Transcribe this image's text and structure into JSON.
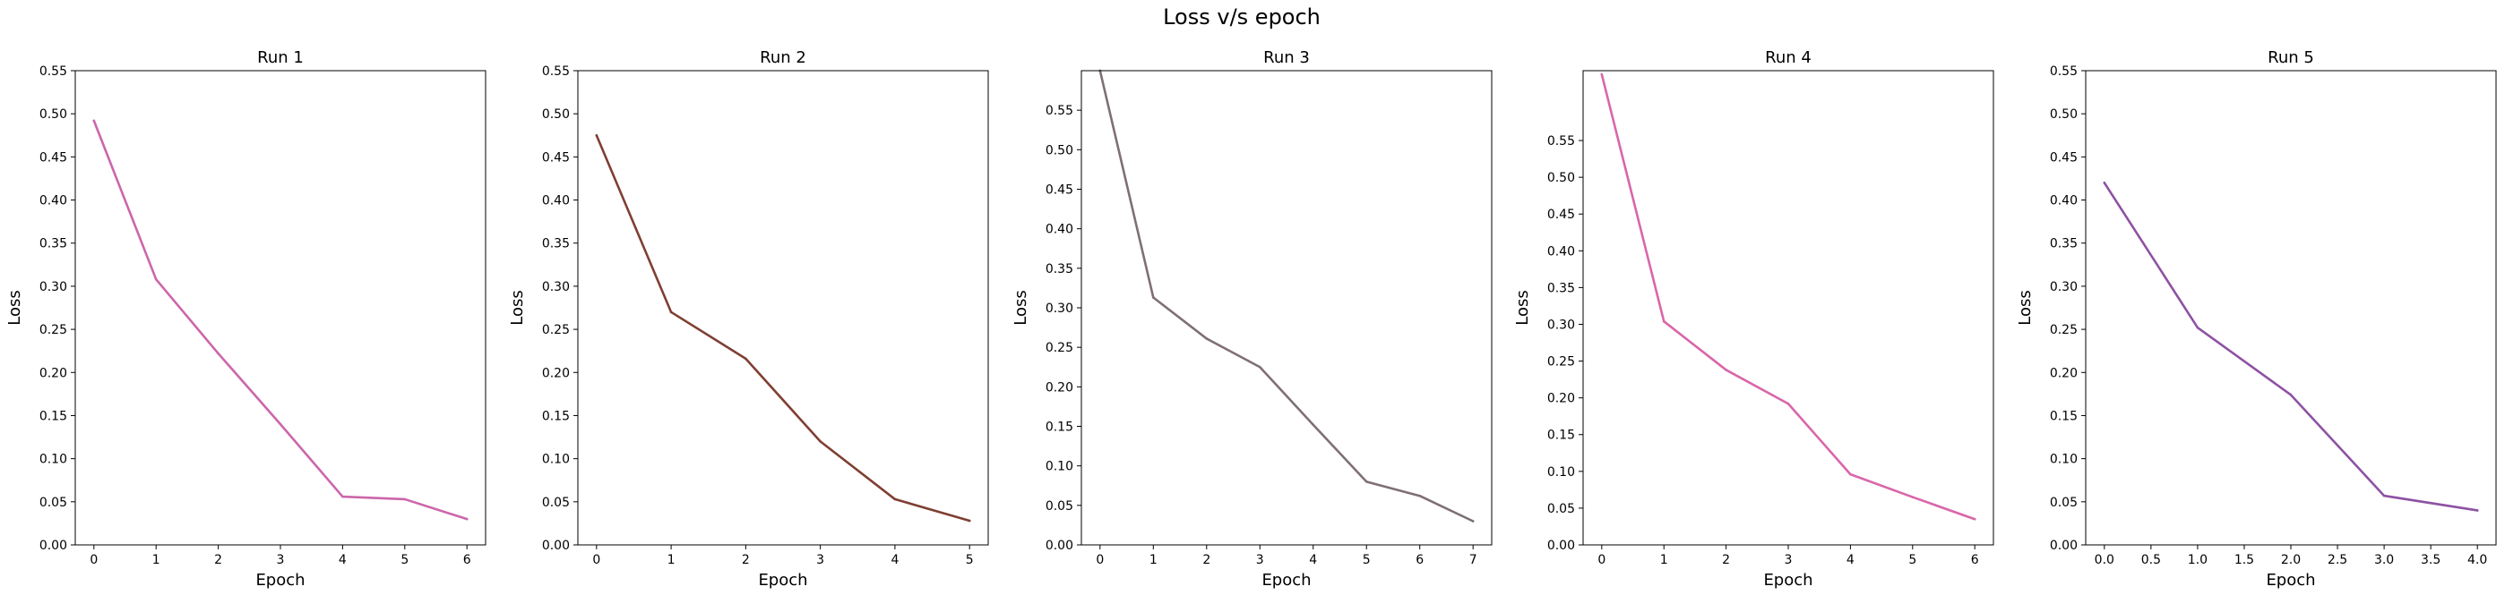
{
  "figure_title": "Loss v/s epoch",
  "chart_data": [
    {
      "type": "line",
      "title": "Run 1",
      "xlabel": "Epoch",
      "ylabel": "Loss",
      "color": "#cc66aa",
      "x": [
        0,
        1,
        2,
        3,
        4,
        5,
        6
      ],
      "y": [
        0.492,
        0.308,
        0.222,
        0.14,
        0.056,
        0.053,
        0.03
      ],
      "xlim": [
        -0.3,
        6.3
      ],
      "ylim": [
        0,
        0.55
      ],
      "xticks": [
        0,
        1,
        2,
        3,
        4,
        5,
        6
      ],
      "xtick_labels": [
        "0",
        "1",
        "2",
        "3",
        "4",
        "5",
        "6"
      ],
      "yticks": [
        0,
        0.05,
        0.1,
        0.15,
        0.2,
        0.25,
        0.3,
        0.35,
        0.4,
        0.45,
        0.5,
        0.55
      ],
      "ytick_labels": [
        "0.00",
        "0.05",
        "0.10",
        "0.15",
        "0.20",
        "0.25",
        "0.30",
        "0.35",
        "0.40",
        "0.45",
        "0.50",
        "0.55"
      ]
    },
    {
      "type": "line",
      "title": "Run 2",
      "xlabel": "Epoch",
      "ylabel": "Loss",
      "color": "#7f3f33",
      "x": [
        0,
        1,
        2,
        3,
        4,
        5
      ],
      "y": [
        0.475,
        0.27,
        0.216,
        0.12,
        0.053,
        0.028
      ],
      "xlim": [
        -0.25,
        5.25
      ],
      "ylim": [
        0,
        0.55
      ],
      "xticks": [
        0,
        1,
        2,
        3,
        4,
        5
      ],
      "xtick_labels": [
        "0",
        "1",
        "2",
        "3",
        "4",
        "5"
      ],
      "yticks": [
        0,
        0.05,
        0.1,
        0.15,
        0.2,
        0.25,
        0.3,
        0.35,
        0.4,
        0.45,
        0.5,
        0.55
      ],
      "ytick_labels": [
        "0.00",
        "0.05",
        "0.10",
        "0.15",
        "0.20",
        "0.25",
        "0.30",
        "0.35",
        "0.40",
        "0.45",
        "0.50",
        "0.55"
      ]
    },
    {
      "type": "line",
      "title": "Run 3",
      "xlabel": "Epoch",
      "ylabel": "Loss",
      "color": "#7f6f73",
      "x": [
        0,
        1,
        2,
        3,
        4,
        5,
        6,
        7
      ],
      "y": [
        0.6,
        0.313,
        0.261,
        0.225,
        0.152,
        0.08,
        0.062,
        0.03
      ],
      "xlim": [
        -0.35,
        7.35
      ],
      "ylim": [
        0,
        0.6
      ],
      "xticks": [
        0,
        1,
        2,
        3,
        4,
        5,
        6,
        7
      ],
      "xtick_labels": [
        "0",
        "1",
        "2",
        "3",
        "4",
        "5",
        "6",
        "7"
      ],
      "yticks": [
        0,
        0.05,
        0.1,
        0.15,
        0.2,
        0.25,
        0.3,
        0.35,
        0.4,
        0.45,
        0.5,
        0.55
      ],
      "ytick_labels": [
        "0.00",
        "0.05",
        "0.10",
        "0.15",
        "0.20",
        "0.25",
        "0.30",
        "0.35",
        "0.40",
        "0.45",
        "0.50",
        "0.55"
      ]
    },
    {
      "type": "line",
      "title": "Run 4",
      "xlabel": "Epoch",
      "ylabel": "Loss",
      "color": "#d966aa",
      "x": [
        0,
        1,
        2,
        3,
        4,
        5,
        6
      ],
      "y": [
        0.64,
        0.304,
        0.238,
        0.192,
        0.096,
        0.065,
        0.035
      ],
      "xlim": [
        -0.3,
        6.3
      ],
      "ylim": [
        0,
        0.645
      ],
      "xticks": [
        0,
        1,
        2,
        3,
        4,
        5,
        6
      ],
      "xtick_labels": [
        "0",
        "1",
        "2",
        "3",
        "4",
        "5",
        "6"
      ],
      "yticks": [
        0,
        0.05,
        0.1,
        0.15,
        0.2,
        0.25,
        0.3,
        0.35,
        0.4,
        0.45,
        0.5,
        0.55
      ],
      "ytick_labels": [
        "0.00",
        "0.05",
        "0.10",
        "0.15",
        "0.20",
        "0.25",
        "0.30",
        "0.35",
        "0.40",
        "0.45",
        "0.50",
        "0.55"
      ]
    },
    {
      "type": "line",
      "title": "Run 5",
      "xlabel": "Epoch",
      "ylabel": "Loss",
      "color": "#8e52a3",
      "x": [
        0,
        1,
        2,
        3,
        4
      ],
      "y": [
        0.42,
        0.252,
        0.174,
        0.057,
        0.04
      ],
      "xlim": [
        -0.2,
        4.2
      ],
      "ylim": [
        0,
        0.55
      ],
      "xticks": [
        0,
        0.5,
        1,
        1.5,
        2,
        2.5,
        3,
        3.5,
        4
      ],
      "xtick_labels": [
        "0.0",
        "0.5",
        "1.0",
        "1.5",
        "2.0",
        "2.5",
        "3.0",
        "3.5",
        "4.0"
      ],
      "yticks": [
        0,
        0.05,
        0.1,
        0.15,
        0.2,
        0.25,
        0.3,
        0.35,
        0.4,
        0.45,
        0.5,
        0.55
      ],
      "ytick_labels": [
        "0.00",
        "0.05",
        "0.10",
        "0.15",
        "0.20",
        "0.25",
        "0.30",
        "0.35",
        "0.40",
        "0.45",
        "0.50",
        "0.55"
      ]
    }
  ]
}
